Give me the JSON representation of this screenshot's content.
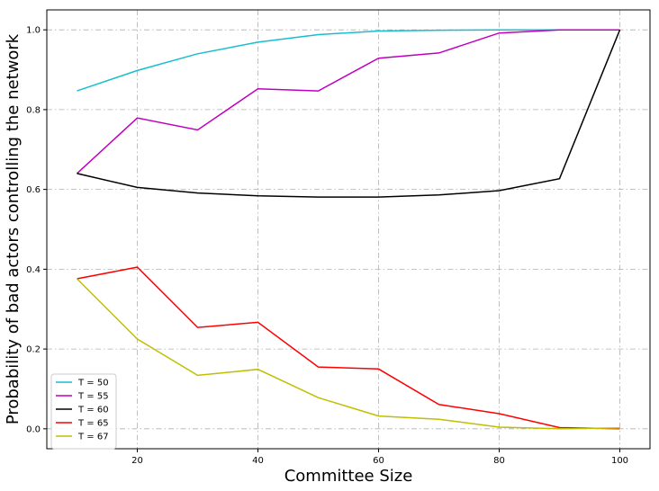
{
  "chart_data": {
    "type": "line",
    "xlabel": "Committee Size",
    "ylabel": "Probability of bad actors controlling the network",
    "xlim": [
      5,
      105
    ],
    "ylim": [
      -0.05,
      1.05
    ],
    "x_ticks": [
      20,
      40,
      60,
      80,
      100
    ],
    "y_ticks": [
      0.0,
      0.2,
      0.4,
      0.6,
      0.8,
      1.0
    ],
    "x_tick_labels": [
      "20",
      "40",
      "60",
      "80",
      "100"
    ],
    "y_tick_labels": [
      "0.0",
      "0.2",
      "0.4",
      "0.6",
      "0.8",
      "1.0"
    ],
    "grid": true,
    "legend_position": "lower-left",
    "x": [
      10,
      20,
      30,
      40,
      50,
      60,
      70,
      80,
      90,
      100
    ],
    "series": [
      {
        "name": "T = 50",
        "color": "#17becf",
        "values": [
          0.847,
          0.898,
          0.94,
          0.969,
          0.988,
          0.997,
          0.999,
          1.0,
          1.0,
          1.0
        ]
      },
      {
        "name": "T = 55",
        "color": "#bf00bf",
        "values": [
          0.64,
          0.779,
          0.749,
          0.852,
          0.847,
          0.929,
          0.942,
          0.992,
          1.0,
          1.0
        ]
      },
      {
        "name": "T = 60",
        "color": "#000000",
        "values": [
          0.64,
          0.605,
          0.591,
          0.584,
          0.581,
          0.581,
          0.586,
          0.597,
          0.627,
          1.0
        ]
      },
      {
        "name": "T = 65",
        "color": "#ff0000",
        "values": [
          0.376,
          0.405,
          0.254,
          0.267,
          0.155,
          0.15,
          0.061,
          0.038,
          0.003,
          0.0
        ]
      },
      {
        "name": "T = 67",
        "color": "#bfbf00",
        "values": [
          0.376,
          0.225,
          0.134,
          0.149,
          0.078,
          0.032,
          0.024,
          0.004,
          0.0,
          0.002
        ]
      }
    ]
  }
}
